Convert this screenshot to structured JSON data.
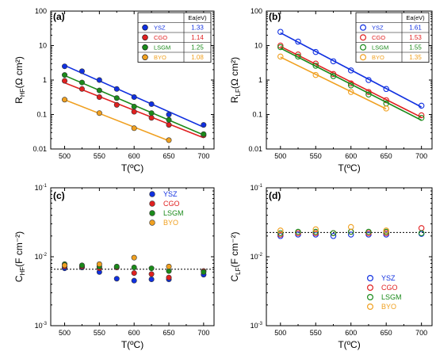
{
  "chart_data": [
    {
      "panel": "(a)",
      "type": "scatter",
      "yscale": "log",
      "xlim": [
        480,
        715
      ],
      "ylim": [
        0.01,
        100
      ],
      "xticks": [
        "500",
        "550",
        "600",
        "650",
        "700"
      ],
      "yticks": [
        "0.01",
        "0.1",
        "1",
        "10",
        "100"
      ],
      "xlabel": "T(ºC)",
      "ylabel": "R_HF(Ω cm²)",
      "marker": "filled",
      "fit_lines": true,
      "legend_position": "top-right",
      "legend_header": "Ea(eV)",
      "series": [
        {
          "name": "YSZ",
          "color": "#1030e0",
          "ea": "1.33",
          "x": [
            500,
            525,
            550,
            575,
            600,
            625,
            650,
            700
          ],
          "y": [
            2.5,
            1.8,
            1.0,
            0.55,
            0.32,
            0.2,
            0.1,
            0.05
          ]
        },
        {
          "name": "CGO",
          "color": "#e02020",
          "ea": "1.14",
          "x": [
            500,
            525,
            550,
            575,
            600,
            625,
            650,
            700
          ],
          "y": [
            0.95,
            0.55,
            0.32,
            0.19,
            0.12,
            0.08,
            0.05,
            0.025
          ]
        },
        {
          "name": "LSGM",
          "color": "#1a8a1a",
          "ea": "1.25",
          "x": [
            500,
            525,
            550,
            575,
            600,
            625,
            650,
            700
          ],
          "y": [
            1.4,
            0.85,
            0.5,
            0.3,
            0.17,
            0.11,
            0.07,
            0.027
          ]
        },
        {
          "name": "BYO",
          "color": "#f0a020",
          "ea": "1.08",
          "x": [
            500,
            550,
            600,
            650
          ],
          "y": [
            0.27,
            0.11,
            0.04,
            0.018
          ]
        }
      ]
    },
    {
      "panel": "(b)",
      "type": "scatter",
      "yscale": "log",
      "xlim": [
        480,
        715
      ],
      "ylim": [
        0.01,
        100
      ],
      "xticks": [
        "500",
        "550",
        "600",
        "650",
        "700"
      ],
      "yticks": [
        "0.01",
        "0.1",
        "1",
        "10",
        "100"
      ],
      "xlabel": "T(ºC)",
      "ylabel": "R_LF(Ω cm²)",
      "marker": "open",
      "fit_lines": true,
      "legend_position": "top-right",
      "legend_header": "Ea(eV)",
      "series": [
        {
          "name": "YSZ",
          "color": "#1030e0",
          "ea": "1.61",
          "x": [
            500,
            525,
            550,
            575,
            600,
            625,
            650,
            700
          ],
          "y": [
            25,
            13,
            6.5,
            3.5,
            1.9,
            1.0,
            0.55,
            0.18
          ]
        },
        {
          "name": "CGO",
          "color": "#e02020",
          "ea": "1.53",
          "x": [
            500,
            525,
            550,
            575,
            600,
            625,
            650,
            700
          ],
          "y": [
            10,
            5.5,
            3.0,
            1.5,
            0.8,
            0.45,
            0.26,
            0.095
          ]
        },
        {
          "name": "LSGM",
          "color": "#1a8a1a",
          "ea": "1.55",
          "x": [
            500,
            525,
            550,
            575,
            600,
            625,
            650,
            700
          ],
          "y": [
            9.0,
            4.8,
            2.6,
            1.3,
            0.7,
            0.38,
            0.21,
            0.08
          ]
        },
        {
          "name": "BYO",
          "color": "#f0a020",
          "ea": "1.35",
          "x": [
            500,
            550,
            600,
            650
          ],
          "y": [
            4.8,
            1.4,
            0.45,
            0.15
          ]
        }
      ]
    },
    {
      "panel": "(c)",
      "type": "scatter",
      "yscale": "log",
      "xlim": [
        480,
        715
      ],
      "ylim": [
        0.001,
        0.1
      ],
      "xticks": [
        "500",
        "550",
        "600",
        "650",
        "700"
      ],
      "yticks": [
        "10",
        "10",
        "10"
      ],
      "ytick_exponents": [
        "-3",
        "-2",
        "-1"
      ],
      "xlabel": "T(ºC)",
      "ylabel": "C_HF(F cm⁻²)",
      "marker": "filled",
      "reference_line": 0.0066,
      "legend_position": "top-right",
      "series": [
        {
          "name": "YSZ",
          "color": "#1030e0",
          "x": [
            500,
            525,
            550,
            575,
            600,
            625,
            650,
            700
          ],
          "y": [
            0.0068,
            0.007,
            0.006,
            0.0048,
            0.0045,
            0.0047,
            0.0047,
            0.0055
          ]
        },
        {
          "name": "CGO",
          "color": "#e02020",
          "x": [
            500,
            525,
            550,
            575,
            600,
            625,
            650,
            700
          ],
          "y": [
            0.0072,
            0.0072,
            0.0068,
            0.007,
            0.0058,
            0.0056,
            0.005,
            0.0062
          ]
        },
        {
          "name": "LSGM",
          "color": "#1a8a1a",
          "x": [
            500,
            525,
            550,
            575,
            600,
            625,
            650,
            700
          ],
          "y": [
            0.0078,
            0.0075,
            0.0072,
            0.0072,
            0.007,
            0.0068,
            0.0062,
            0.006
          ]
        },
        {
          "name": "BYO",
          "color": "#f0a020",
          "x": [
            500,
            550,
            600,
            650
          ],
          "y": [
            0.0075,
            0.0078,
            0.0097,
            0.0072
          ]
        }
      ]
    },
    {
      "panel": "(d)",
      "type": "scatter",
      "yscale": "log",
      "xlim": [
        480,
        715
      ],
      "ylim": [
        0.001,
        0.1
      ],
      "xticks": [
        "500",
        "550",
        "600",
        "650",
        "700"
      ],
      "yticks": [
        "10",
        "10",
        "10"
      ],
      "ytick_exponents": [
        "-3",
        "-2",
        "-1"
      ],
      "xlabel": "T(ºC)",
      "ylabel": "C_LF(F cm⁻²)",
      "marker": "open",
      "reference_line": 0.0225,
      "legend_position": "bottom-right",
      "series": [
        {
          "name": "YSZ",
          "color": "#1030e0",
          "x": [
            500,
            525,
            550,
            575,
            600,
            625,
            650,
            700
          ],
          "y": [
            0.02,
            0.021,
            0.021,
            0.02,
            0.021,
            0.021,
            0.021,
            0.0215
          ]
        },
        {
          "name": "CGO",
          "color": "#e02020",
          "x": [
            500,
            525,
            550,
            575,
            600,
            625,
            650,
            700
          ],
          "y": [
            0.021,
            0.022,
            0.022,
            0.022,
            0.023,
            0.022,
            0.022,
            0.026
          ]
        },
        {
          "name": "LSGM",
          "color": "#1a8a1a",
          "x": [
            500,
            525,
            550,
            575,
            600,
            625,
            650,
            700
          ],
          "y": [
            0.022,
            0.023,
            0.023,
            0.022,
            0.023,
            0.023,
            0.023,
            0.022
          ]
        },
        {
          "name": "BYO",
          "color": "#f0a020",
          "x": [
            500,
            550,
            600,
            650
          ],
          "y": [
            0.024,
            0.025,
            0.027,
            0.024
          ]
        }
      ]
    }
  ]
}
